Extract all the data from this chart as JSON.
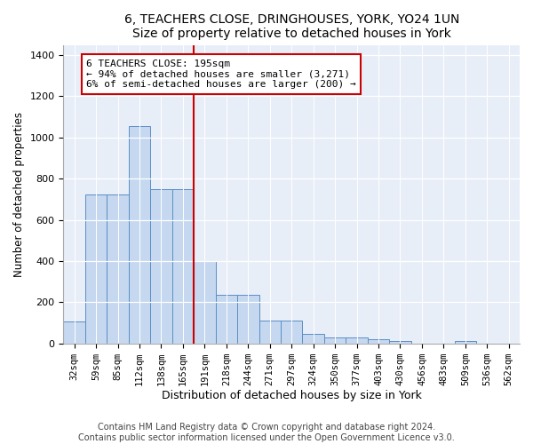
{
  "title": "6, TEACHERS CLOSE, DRINGHOUSES, YORK, YO24 1UN",
  "subtitle": "Size of property relative to detached houses in York",
  "xlabel": "Distribution of detached houses by size in York",
  "ylabel": "Number of detached properties",
  "bar_color": "#c5d8f0",
  "bar_edge_color": "#5b8ec4",
  "background_color": "#e8eef8",
  "grid_color": "#ffffff",
  "fig_facecolor": "#ffffff",
  "bins": [
    "32sqm",
    "59sqm",
    "85sqm",
    "112sqm",
    "138sqm",
    "165sqm",
    "191sqm",
    "218sqm",
    "244sqm",
    "271sqm",
    "297sqm",
    "324sqm",
    "350sqm",
    "377sqm",
    "403sqm",
    "430sqm",
    "456sqm",
    "483sqm",
    "509sqm",
    "536sqm",
    "562sqm"
  ],
  "values": [
    108,
    722,
    725,
    1057,
    750,
    748,
    400,
    237,
    235,
    113,
    113,
    45,
    28,
    28,
    22,
    12,
    0,
    0,
    12,
    0,
    0
  ],
  "vline_bin_index": 6,
  "vline_color": "#cc0000",
  "annotation_text": "6 TEACHERS CLOSE: 195sqm\n← 94% of detached houses are smaller (3,271)\n6% of semi-detached houses are larger (200) →",
  "annotation_box_facecolor": "#ffffff",
  "annotation_box_edgecolor": "#cc0000",
  "ylim": [
    0,
    1450
  ],
  "yticks": [
    0,
    200,
    400,
    600,
    800,
    1000,
    1200,
    1400
  ],
  "footer_line1": "Contains HM Land Registry data © Crown copyright and database right 2024.",
  "footer_line2": "Contains public sector information licensed under the Open Government Licence v3.0."
}
